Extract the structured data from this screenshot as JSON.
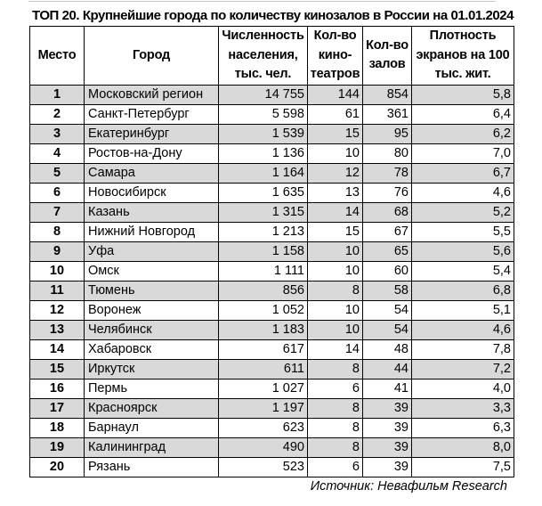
{
  "title": "ТОП 20. Крупнейшие города по количеству кинозалов в России на 01.01.2024",
  "source": "Источник: Невафильм Research",
  "colors": {
    "row_alt": "#d9d9d9",
    "border": "#000000"
  },
  "table": {
    "headers": [
      "Место",
      "Город",
      "Численность\nнаселения,\nтыс. чел.",
      "Кол-во\nкино-\nтеатров",
      "Кол-во\nзалов",
      "Плотность\nэкранов на 100\nтыс. жит."
    ],
    "rows": [
      {
        "rank": "1",
        "city": "Московский регион",
        "population": "14 755",
        "cinemas": "144",
        "halls": "854",
        "density": "5,8"
      },
      {
        "rank": "2",
        "city": "Санкт-Петербург",
        "population": "5 598",
        "cinemas": "61",
        "halls": "361",
        "density": "6,4"
      },
      {
        "rank": "3",
        "city": "Екатеринбург",
        "population": "1 539",
        "cinemas": "15",
        "halls": "95",
        "density": "6,2"
      },
      {
        "rank": "4",
        "city": "Ростов-на-Дону",
        "population": "1 136",
        "cinemas": "10",
        "halls": "80",
        "density": "7,0"
      },
      {
        "rank": "5",
        "city": "Самара",
        "population": "1 164",
        "cinemas": "12",
        "halls": "78",
        "density": "6,7"
      },
      {
        "rank": "6",
        "city": "Новосибирск",
        "population": "1 635",
        "cinemas": "13",
        "halls": "76",
        "density": "4,6"
      },
      {
        "rank": "7",
        "city": "Казань",
        "population": "1 315",
        "cinemas": "14",
        "halls": "68",
        "density": "5,2"
      },
      {
        "rank": "8",
        "city": "Нижний Новгород",
        "population": "1 213",
        "cinemas": "15",
        "halls": "67",
        "density": "5,5"
      },
      {
        "rank": "9",
        "city": "Уфа",
        "population": "1 158",
        "cinemas": "10",
        "halls": "65",
        "density": "5,6"
      },
      {
        "rank": "10",
        "city": "Омск",
        "population": "1 111",
        "cinemas": "10",
        "halls": "60",
        "density": "5,4"
      },
      {
        "rank": "11",
        "city": "Тюмень",
        "population": "856",
        "cinemas": "8",
        "halls": "58",
        "density": "6,8"
      },
      {
        "rank": "12",
        "city": "Воронеж",
        "population": "1 052",
        "cinemas": "10",
        "halls": "54",
        "density": "5,1"
      },
      {
        "rank": "13",
        "city": "Челябинск",
        "population": "1 183",
        "cinemas": "10",
        "halls": "54",
        "density": "4,6"
      },
      {
        "rank": "14",
        "city": "Хабаровск",
        "population": "617",
        "cinemas": "14",
        "halls": "48",
        "density": "7,8"
      },
      {
        "rank": "15",
        "city": "Иркутск",
        "population": "611",
        "cinemas": "8",
        "halls": "44",
        "density": "7,2"
      },
      {
        "rank": "16",
        "city": "Пермь",
        "population": "1 027",
        "cinemas": "6",
        "halls": "41",
        "density": "4,0"
      },
      {
        "rank": "17",
        "city": "Красноярск",
        "population": "1 197",
        "cinemas": "8",
        "halls": "39",
        "density": "3,3"
      },
      {
        "rank": "18",
        "city": "Барнаул",
        "population": "623",
        "cinemas": "8",
        "halls": "39",
        "density": "6,3"
      },
      {
        "rank": "19",
        "city": "Калининград",
        "population": "490",
        "cinemas": "8",
        "halls": "39",
        "density": "8,0"
      },
      {
        "rank": "20",
        "city": "Рязань",
        "population": "523",
        "cinemas": "6",
        "halls": "39",
        "density": "7,5"
      }
    ]
  }
}
